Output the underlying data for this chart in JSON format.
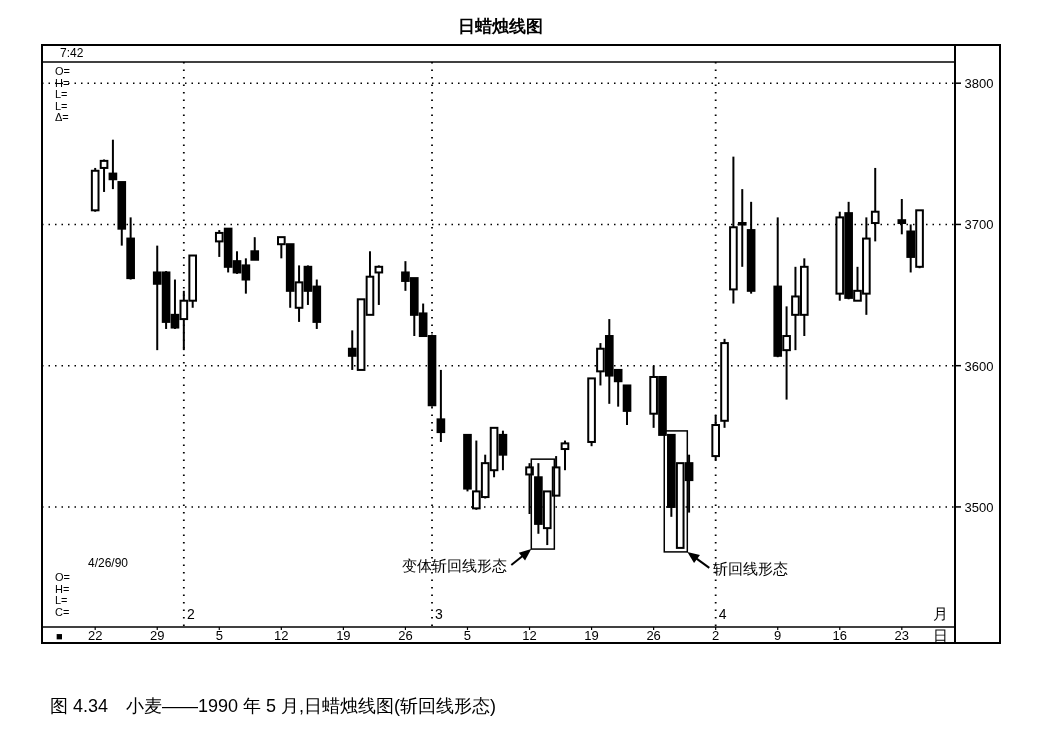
{
  "chart_data": {
    "type": "candlestick",
    "title": "日蜡烛线图",
    "x": [
      "1990-01-22",
      "1990-01-23",
      "1990-01-24",
      "1990-01-25",
      "1990-01-26",
      "1990-01-29",
      "1990-01-30",
      "1990-01-31",
      "1990-02-01",
      "1990-02-02",
      "1990-02-05",
      "1990-02-06",
      "1990-02-07",
      "1990-02-08",
      "1990-02-09",
      "1990-02-12",
      "1990-02-13",
      "1990-02-14",
      "1990-02-15",
      "1990-02-16",
      "1990-02-20",
      "1990-02-21",
      "1990-02-22",
      "1990-02-23",
      "1990-02-26",
      "1990-02-27",
      "1990-02-28",
      "1990-03-01",
      "1990-03-02",
      "1990-03-05",
      "1990-03-06",
      "1990-03-07",
      "1990-03-08",
      "1990-03-09",
      "1990-03-12",
      "1990-03-13",
      "1990-03-14",
      "1990-03-15",
      "1990-03-16",
      "1990-03-19",
      "1990-03-20",
      "1990-03-21",
      "1990-03-22",
      "1990-03-23",
      "1990-03-26",
      "1990-03-27",
      "1990-03-28",
      "1990-03-29",
      "1990-03-30",
      "1990-04-02",
      "1990-04-03",
      "1990-04-04",
      "1990-04-05",
      "1990-04-06",
      "1990-04-09",
      "1990-04-10",
      "1990-04-11",
      "1990-04-12",
      "1990-04-16",
      "1990-04-17",
      "1990-04-18",
      "1990-04-19",
      "1990-04-20",
      "1990-04-23",
      "1990-04-24",
      "1990-04-25"
    ],
    "series": [
      {
        "color": "#000000",
        "ohlc": [
          [
            3710,
            3740,
            3709,
            3738
          ],
          [
            3740,
            3746,
            3723,
            3745
          ],
          [
            3736,
            3760,
            3725,
            3732
          ],
          [
            3730,
            3730,
            3685,
            3697
          ],
          [
            3690,
            3705,
            3661,
            3662
          ],
          [
            3666,
            3685,
            3611,
            3658
          ],
          [
            3666,
            3667,
            3626,
            3631
          ],
          [
            3636,
            3661,
            3626,
            3627
          ],
          [
            3633,
            3653,
            3611,
            3646
          ],
          [
            3646,
            3678,
            3641,
            3678
          ],
          [
            3688,
            3696,
            3677,
            3694
          ],
          [
            3697,
            3697,
            3666,
            3670
          ],
          [
            3674,
            3681,
            3665,
            3666
          ],
          [
            3671,
            3676,
            3651,
            3661
          ],
          [
            3681,
            3691,
            3675,
            3675
          ],
          [
            3686,
            3691,
            3676,
            3691
          ],
          [
            3686,
            3686,
            3641,
            3653
          ],
          [
            3641,
            3671,
            3631,
            3659
          ],
          [
            3670,
            3671,
            3643,
            3653
          ],
          [
            3656,
            3661,
            3626,
            3631
          ],
          [
            3612,
            3625,
            3597,
            3607
          ],
          [
            3597,
            3647,
            3597,
            3647
          ],
          [
            3636,
            3681,
            3636,
            3663
          ],
          [
            3666,
            3671,
            3643,
            3670
          ],
          [
            3666,
            3674,
            3653,
            3660
          ],
          [
            3662,
            3662,
            3621,
            3636
          ],
          [
            3637,
            3644,
            3621,
            3621
          ],
          [
            3621,
            3622,
            3571,
            3572
          ],
          [
            3562,
            3597,
            3546,
            3553
          ],
          [
            3551,
            3551,
            3511,
            3513
          ],
          [
            3499,
            3547,
            3498,
            3511
          ],
          [
            3507,
            3537,
            3506,
            3531
          ],
          [
            3526,
            3556,
            3521,
            3556
          ],
          [
            3551,
            3554,
            3526,
            3537
          ],
          [
            3523,
            3531,
            3495,
            3528
          ],
          [
            3521,
            3531,
            3481,
            3488
          ],
          [
            3485,
            3511,
            3473,
            3511
          ],
          [
            3508,
            3536,
            3508,
            3528
          ],
          [
            3541,
            3547,
            3526,
            3545
          ],
          [
            3546,
            3591,
            3543,
            3591
          ],
          [
            3596,
            3616,
            3586,
            3612
          ],
          [
            3621,
            3633,
            3573,
            3593
          ],
          [
            3597,
            3597,
            3571,
            3589
          ],
          [
            3586,
            3586,
            3558,
            3568
          ],
          [
            3566,
            3600,
            3556,
            3592
          ],
          [
            3592,
            3592,
            3551,
            3551
          ],
          [
            3551,
            3551,
            3493,
            3500
          ],
          [
            3471,
            3531,
            3471,
            3531
          ],
          [
            3531,
            3537,
            3496,
            3519
          ],
          [
            3536,
            3565,
            3533,
            3558
          ],
          [
            3561,
            3619,
            3556,
            3616
          ],
          [
            3654,
            3748,
            3644,
            3698
          ],
          [
            3701,
            3725,
            3670,
            3701
          ],
          [
            3696,
            3716,
            3651,
            3653
          ],
          [
            3656,
            3705,
            3606,
            3607
          ],
          [
            3611,
            3642,
            3576,
            3621
          ],
          [
            3636,
            3670,
            3611,
            3649
          ],
          [
            3636,
            3676,
            3621,
            3670
          ],
          [
            3651,
            3709,
            3646,
            3705
          ],
          [
            3708,
            3716,
            3647,
            3648
          ],
          [
            3646,
            3670,
            3646,
            3653
          ],
          [
            3651,
            3705,
            3636,
            3690
          ],
          [
            3701,
            3740,
            3688,
            3709
          ],
          [
            3703,
            3718,
            3693,
            3701
          ],
          [
            3695,
            3700,
            3666,
            3677
          ],
          [
            3670,
            3710,
            3669,
            3710
          ]
        ]
      }
    ],
    "xlim": [
      "1990-01-16",
      "1990-04-29"
    ],
    "xticks": [
      {
        "value": "1990-01-22",
        "label": "22"
      },
      {
        "value": "1990-01-29",
        "label": "29"
      },
      {
        "value": "1990-02-05",
        "label": "5"
      },
      {
        "value": "1990-02-12",
        "label": "12"
      },
      {
        "value": "1990-02-19",
        "label": "19"
      },
      {
        "value": "1990-02-26",
        "label": "26"
      },
      {
        "value": "1990-03-05",
        "label": "5"
      },
      {
        "value": "1990-03-12",
        "label": "12"
      },
      {
        "value": "1990-03-19",
        "label": "19"
      },
      {
        "value": "1990-03-26",
        "label": "26"
      },
      {
        "value": "1990-04-02",
        "label": "2"
      },
      {
        "value": "1990-04-09",
        "label": "9"
      },
      {
        "value": "1990-04-16",
        "label": "16"
      },
      {
        "value": "1990-04-23",
        "label": "23"
      }
    ],
    "ylim": [
      3415,
      3815
    ],
    "yticks": [
      3500,
      3600,
      3700,
      3800
    ],
    "grid": "y",
    "ref_lines": [
      {
        "axis": "x",
        "value": "1990-02-01",
        "label": "2",
        "line_style": "dotted"
      },
      {
        "axis": "x",
        "value": "1990-03-01",
        "label": "3",
        "line_style": "dotted"
      },
      {
        "axis": "x",
        "value": "1990-04-02",
        "label": "4",
        "line_style": "dotted"
      }
    ],
    "annotations": [
      "7:42",
      "O=\nH=\nL=\nL=\nΔ=",
      "4/26/90",
      "O=\nH=\nL=\nC=",
      "■",
      "月",
      "日",
      "变体斩回线形态",
      "斩回线形态",
      "图 4.34　小麦——1990 年 5 月,日蜡烛线图(斩回线形态)"
    ]
  }
}
